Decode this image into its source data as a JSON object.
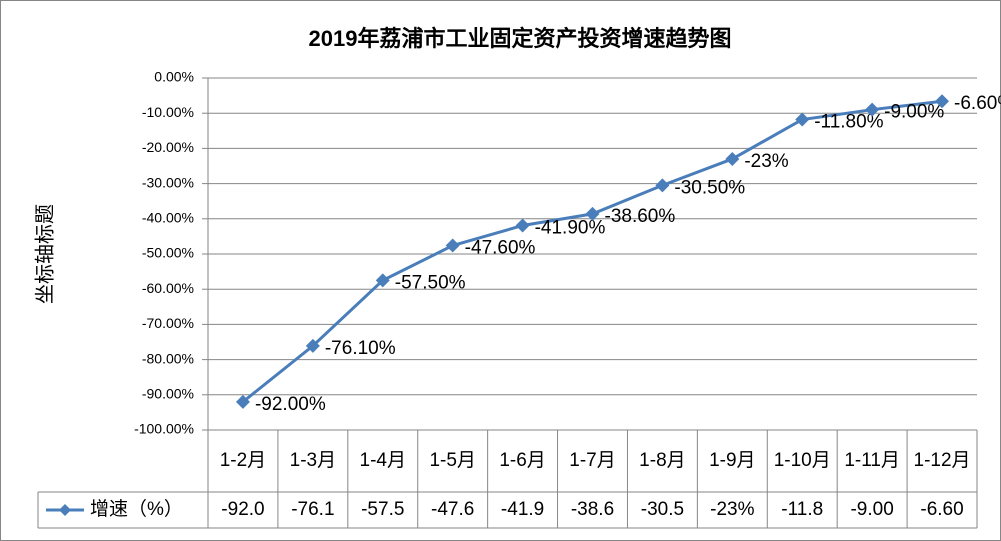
{
  "chart_data": {
    "type": "line",
    "title": "2019年荔浦市工业固定资产投资增速趋势图",
    "y_label": "坐标轴标题",
    "categories": [
      "1-2月",
      "1-3月",
      "1-4月",
      "1-5月",
      "1-6月",
      "1-7月",
      "1-8月",
      "1-9月",
      "1-10月",
      "1-11月",
      "1-12月"
    ],
    "series": [
      {
        "name": "增速（%）",
        "color": "#4a7ebb",
        "values": [
          -92,
          -76.1,
          -57.5,
          -47.6,
          -41.9,
          -38.6,
          -30.5,
          -23,
          -11.8,
          -9,
          -6.6
        ],
        "value_labels": [
          "-92.00%",
          "-76.10%",
          "-57.50%",
          "-47.60%",
          "-41.90%",
          "-38.60%",
          "-30.50%",
          "-23%",
          "-11.80%",
          "-9.00%",
          "-6.60%"
        ],
        "table_value_labels": [
          "-92.0",
          "-76.1",
          "-57.5",
          "-47.6",
          "-41.9",
          "-38.6",
          "-30.5",
          "-23%",
          "-11.8",
          "-9.00",
          "-6.60"
        ]
      }
    ],
    "ylim": [
      -100,
      0
    ],
    "yticks": [
      {
        "value": 0,
        "label": "0.00%"
      },
      {
        "value": -10,
        "label": "-10.00%"
      },
      {
        "value": -20,
        "label": "-20.00%"
      },
      {
        "value": -30,
        "label": "-30.00%"
      },
      {
        "value": -40,
        "label": "-40.00%"
      },
      {
        "value": -50,
        "label": "-50.00%"
      },
      {
        "value": -60,
        "label": "-60.00%"
      },
      {
        "value": -70,
        "label": "-70.00%"
      },
      {
        "value": -80,
        "label": "-80.00%"
      },
      {
        "value": -90,
        "label": "-90.00%"
      },
      {
        "value": -100,
        "label": "-100.00%"
      }
    ],
    "grid": true
  }
}
